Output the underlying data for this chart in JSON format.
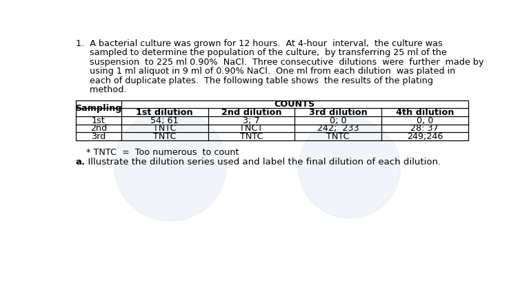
{
  "para_lines": [
    "1.  A bacterial culture was grown for 12 hours.  At 4-hour  interval,  the culture was",
    "     sampled to determine the population of the culture,  by transferring 25 ml of the",
    "     suspension  to 225 ml 0.90%  NaCl.  Three consecutive  dilutions  were  further  made by",
    "     using 1 ml aliquot in 9 ml of 0.90% NaCl.  One ml from each dilution  was plated in",
    "     each of duplicate plates.  The following table shows  the results of the plating",
    "     method."
  ],
  "table_data": [
    [
      "54; 61",
      "3; 7",
      "0; 0",
      "0, 0"
    ],
    [
      "TNTC",
      "TNCT",
      "242;  233",
      "28: 37"
    ],
    [
      "TNTC",
      "TNTC",
      "TNTC",
      "249;246"
    ]
  ],
  "row_labels_base": [
    "1",
    "2",
    "3"
  ],
  "row_labels_super": [
    "st",
    "nd",
    "rd"
  ],
  "col_bases": [
    "1",
    "2",
    "3",
    "4"
  ],
  "col_supers": [
    "st",
    "nd",
    "rd",
    "th"
  ],
  "footnote": "* TNTC  =  Too numerous  to count",
  "question_a_label": "a.",
  "question_a_text": "  Illustrate the dilution series used and label the final dilution of each dilution.",
  "bg_color": "#ffffff",
  "text_color": "#000000",
  "watermark_color_left": "#dce4f0",
  "watermark_color_right": "#dce4f0",
  "para_fontsize": 9.2,
  "table_fontsize": 9.2,
  "footnote_fontsize": 9.2,
  "question_fontsize": 9.5
}
